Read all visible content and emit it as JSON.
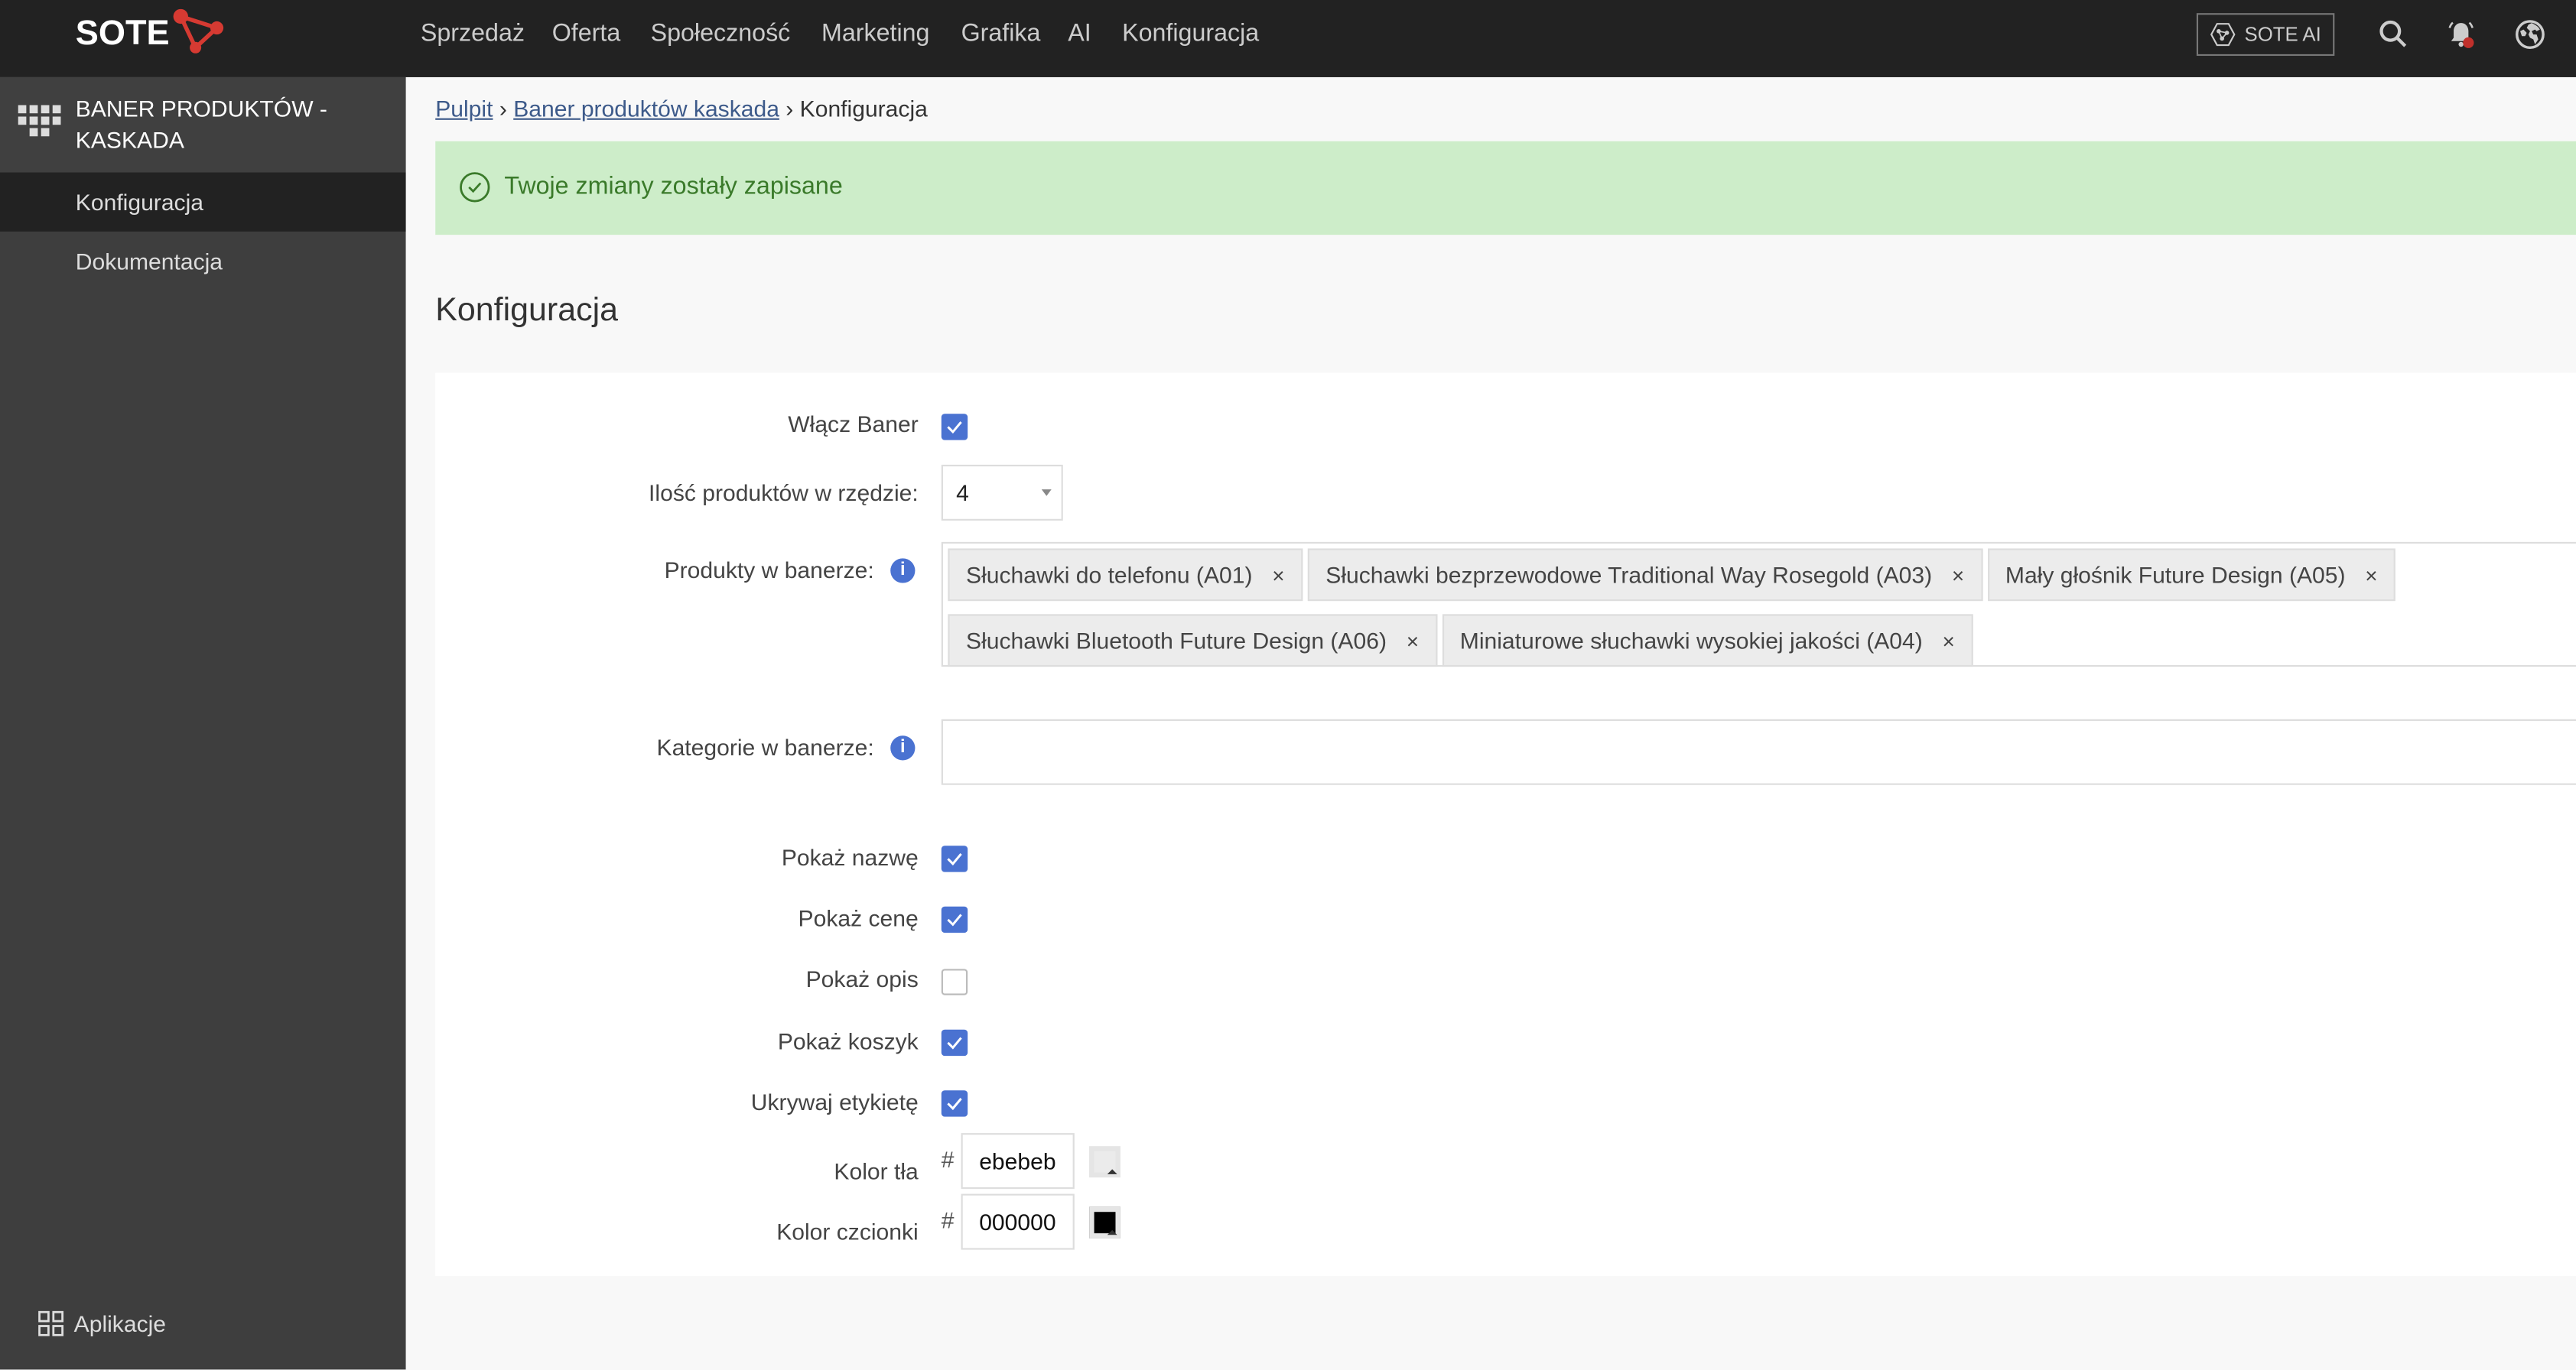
{
  "topbar": {
    "logo": "SOTE",
    "nav": [
      "Sprzedaż",
      "Oferta",
      "Społeczność",
      "Marketing",
      "Grafika",
      "AI",
      "Konfiguracja"
    ],
    "sote_ai_label": "SOTE AI",
    "icons": [
      "search-icon",
      "bell-icon",
      "globe-icon"
    ],
    "notification_dot_color": "#c0302b"
  },
  "sidebar": {
    "title": "BANER PRODUKTÓW - KASKADA",
    "items": [
      {
        "label": "Konfiguracja",
        "active": true
      },
      {
        "label": "Dokumentacja",
        "active": false
      }
    ],
    "footer": "Aplikacje"
  },
  "breadcrumb": [
    "Pulpit",
    "Baner produktów kaskada",
    "Konfiguracja"
  ],
  "alert": {
    "text": "Twoje zmiany zostały zapisane",
    "color": "#3a7a2a",
    "background": "#cdedc9"
  },
  "page_title": "Konfiguracja",
  "form": {
    "enable_banner": {
      "label": "Włącz Baner",
      "checked": true
    },
    "per_row": {
      "label": "Ilość produktów w rzędzie:",
      "value": "4"
    },
    "products": {
      "label": "Produkty w banerze:",
      "tags": [
        "Słuchawki do telefonu (A01)",
        "Słuchawki bezprzewodowe Traditional Way Rosegold (A03)",
        "Mały głośnik Future Design (A05)",
        "Słuchawki Bluetooth Future Design (A06)",
        "Miniaturowe słuchawki wysokiej jakości (A04)"
      ],
      "remove_symbol": "×"
    },
    "categories": {
      "label": "Kategorie w banerze:",
      "value": ""
    },
    "show_name": {
      "label": "Pokaż nazwę",
      "checked": true
    },
    "show_price": {
      "label": "Pokaż cenę",
      "checked": true
    },
    "show_desc": {
      "label": "Pokaż opis",
      "checked": false
    },
    "show_cart": {
      "label": "Pokaż koszyk",
      "checked": true
    },
    "hide_label": {
      "label": "Ukrywaj etykietę",
      "checked": true
    },
    "bg_color": {
      "label": "Kolor tła",
      "hash": "#",
      "value": "ebebeb"
    },
    "font_color": {
      "label": "Kolor czcionki",
      "hash": "#",
      "value": "000000"
    }
  },
  "accent_color": "#4a72d1"
}
